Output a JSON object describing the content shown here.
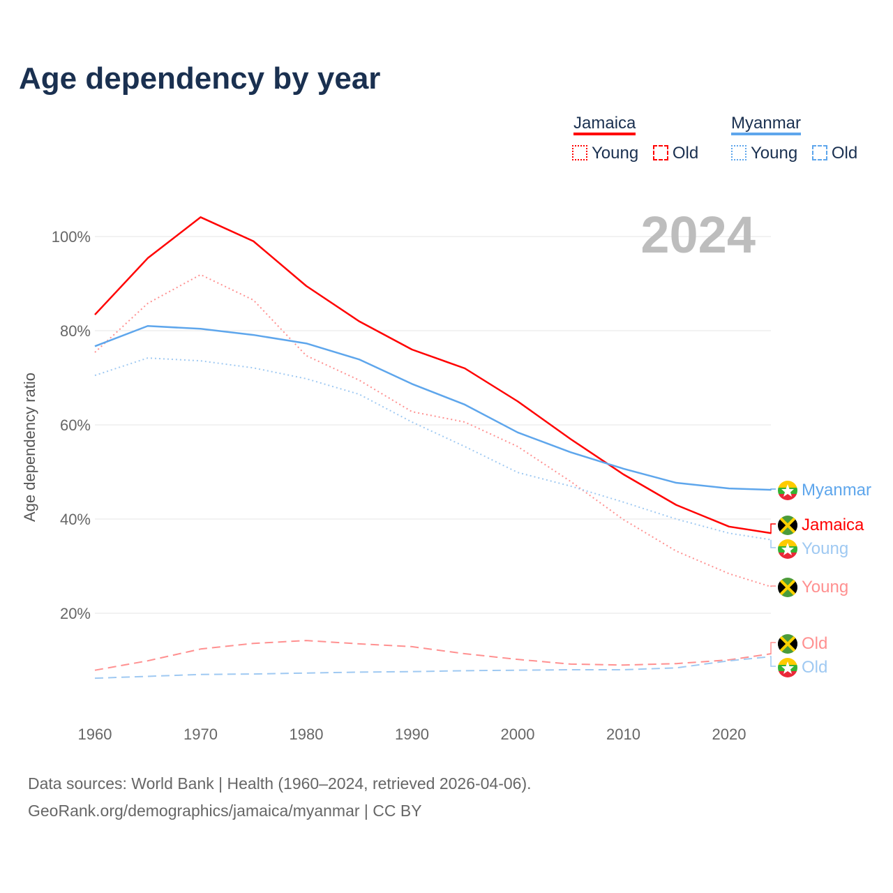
{
  "title": "Age dependency by year",
  "legend": {
    "groups": [
      {
        "name": "Jamaica",
        "color": "#ff0000",
        "items": [
          "Young",
          "Old"
        ]
      },
      {
        "name": "Myanmar",
        "color": "#5ea6ec",
        "items": [
          "Young",
          "Old"
        ]
      }
    ]
  },
  "footer": {
    "line1": "Data sources: World Bank | Health (1960–2024, retrieved 2026-04-06).",
    "line2": "GeoRank.org/demographics/jamaica/myanmar | CC BY"
  },
  "chart_data": {
    "type": "line",
    "title": "Age dependency by year",
    "year_label": "2024",
    "xlabel": "",
    "ylabel": "Age dependency ratio",
    "xlim": [
      1960,
      2024
    ],
    "ylim": [
      0,
      105
    ],
    "xticks": [
      "1960",
      "1970",
      "1980",
      "1990",
      "2000",
      "2010",
      "2020"
    ],
    "yticks": [
      "20%",
      "40%",
      "60%",
      "80%",
      "100%"
    ],
    "grid": true,
    "legend_position": "top-right",
    "x": [
      1960,
      1965,
      1970,
      1975,
      1980,
      1985,
      1990,
      1995,
      2000,
      2005,
      2010,
      2015,
      2020,
      2024
    ],
    "series": [
      {
        "name": "Jamaica",
        "label": "Jamaica",
        "country": "jamaica",
        "color": "#ff0000",
        "style": "solid",
        "values": [
          83.4,
          95.4,
          104.1,
          99.0,
          89.5,
          82.0,
          76.0,
          72.0,
          65.0,
          57.0,
          49.5,
          43.0,
          38.4,
          37.0
        ]
      },
      {
        "name": "Jamaica Young",
        "label": "Young",
        "country": "jamaica",
        "color": "#ff9090",
        "style": "dotted",
        "values": [
          75.4,
          85.8,
          91.9,
          86.5,
          74.7,
          69.5,
          62.8,
          60.6,
          55.4,
          48.0,
          39.9,
          33.2,
          28.4,
          25.6
        ]
      },
      {
        "name": "Jamaica Old",
        "label": "Old",
        "country": "jamaica",
        "color": "#ff9090",
        "style": "dashed",
        "values": [
          7.9,
          9.9,
          12.4,
          13.6,
          14.2,
          13.5,
          12.9,
          11.4,
          10.2,
          9.2,
          9.0,
          9.3,
          10.1,
          11.4
        ]
      },
      {
        "name": "Myanmar",
        "label": "Myanmar",
        "country": "myanmar",
        "color": "#5ea6ec",
        "style": "solid",
        "values": [
          76.7,
          81.0,
          80.4,
          79.1,
          77.3,
          73.9,
          68.7,
          64.3,
          58.4,
          54.2,
          50.7,
          47.7,
          46.5,
          46.2
        ]
      },
      {
        "name": "Myanmar Young",
        "label": "Young",
        "country": "myanmar",
        "color": "#9fc9f2",
        "style": "dotted",
        "values": [
          70.5,
          74.2,
          73.6,
          72.1,
          69.8,
          66.5,
          60.6,
          55.4,
          49.9,
          47.0,
          43.6,
          40.0,
          37.0,
          35.6
        ]
      },
      {
        "name": "Myanmar Old",
        "label": "Old",
        "country": "myanmar",
        "color": "#9fc9f2",
        "style": "dashed",
        "values": [
          6.2,
          6.6,
          7.0,
          7.1,
          7.3,
          7.5,
          7.6,
          7.8,
          7.9,
          8.0,
          8.0,
          8.4,
          9.9,
          10.8
        ]
      }
    ]
  }
}
